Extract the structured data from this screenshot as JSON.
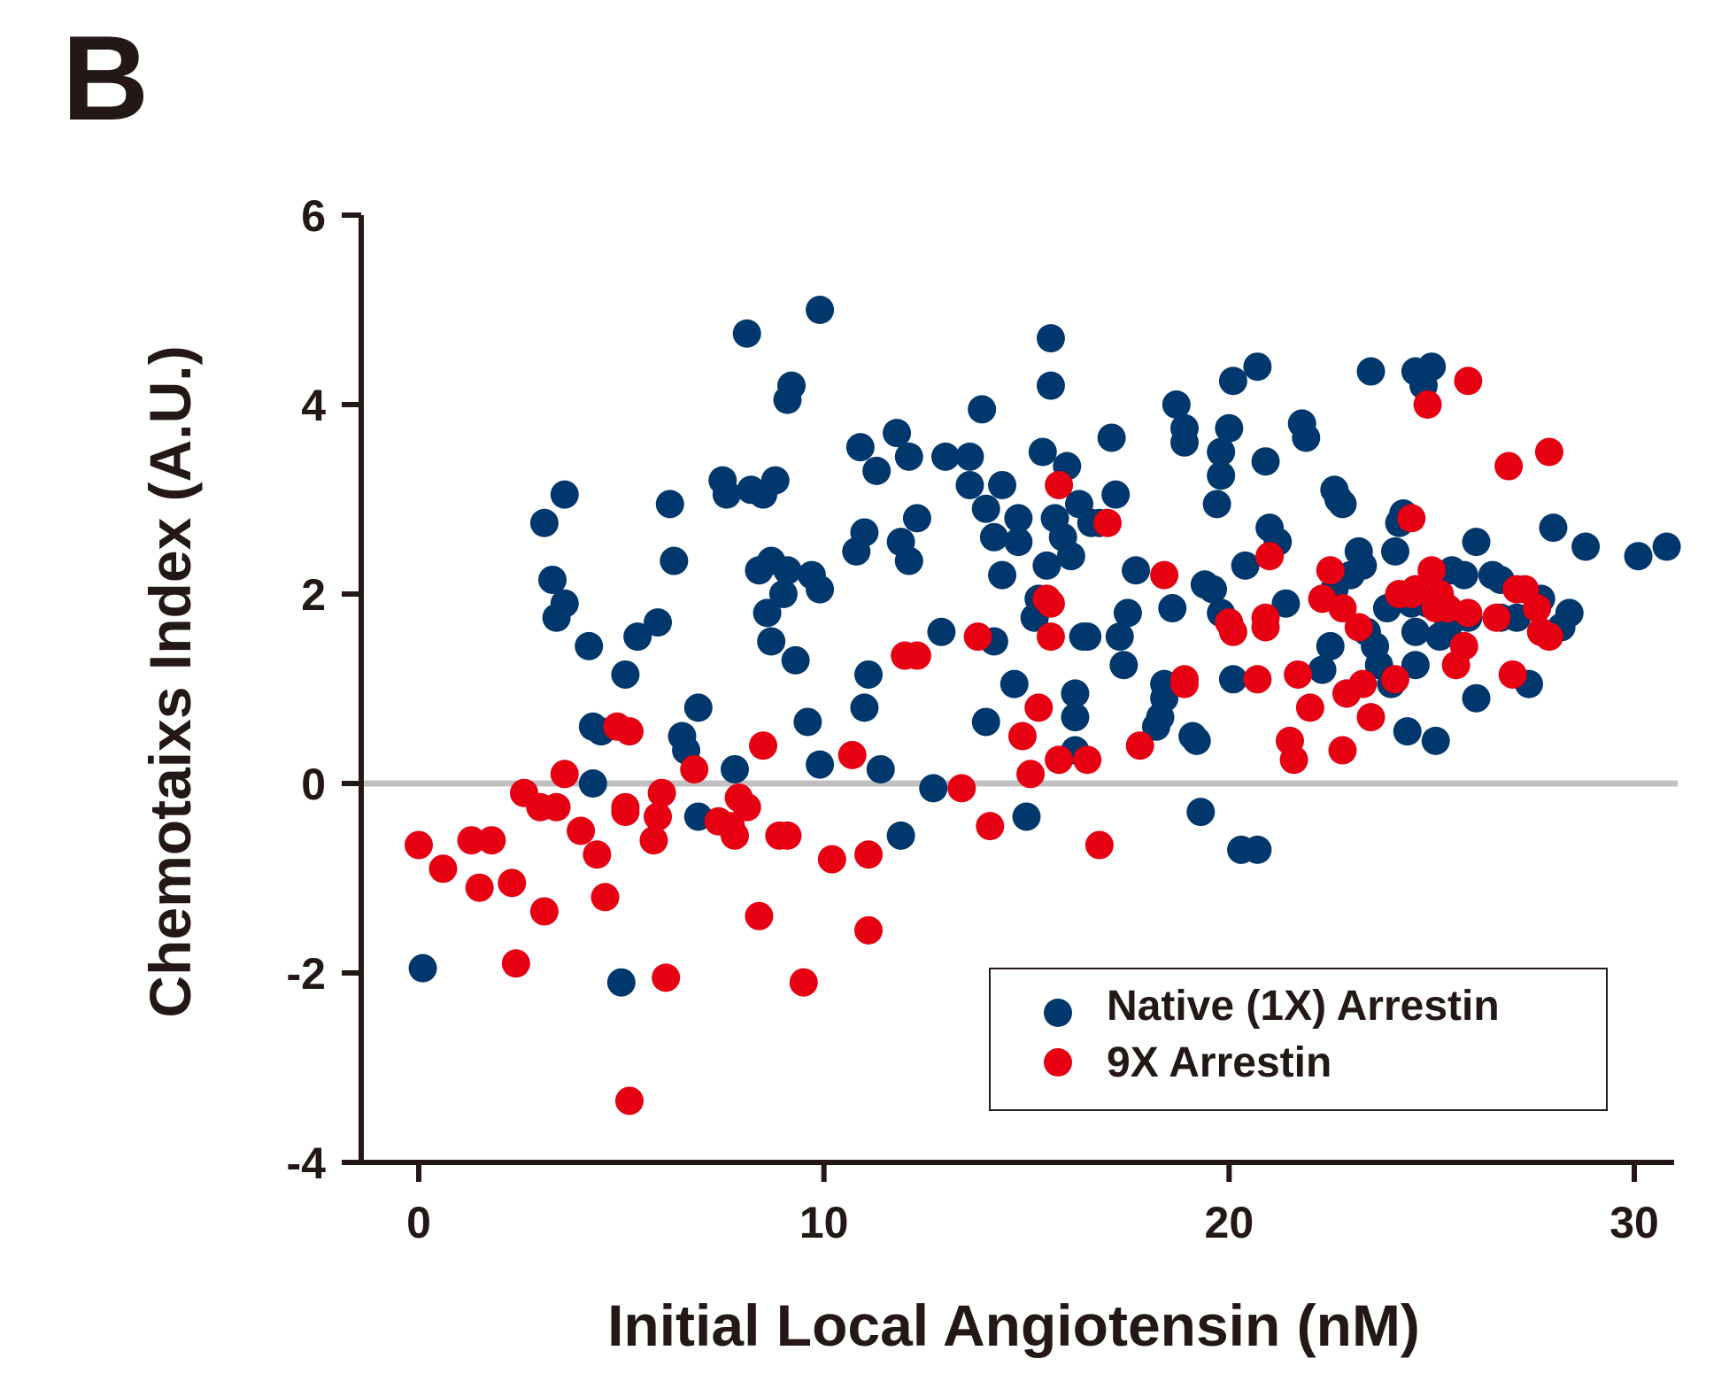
{
  "panel_label": "B",
  "colors": {
    "native": "#00376c",
    "nine_x": "#e60012",
    "axis": "#231815",
    "zero_line": "#c0c0c0"
  },
  "chart_data": {
    "type": "scatter",
    "title": "",
    "xlabel": "Initial Local Angiotensin (nM)",
    "ylabel": "Chemotaixs Index (A.U.)",
    "xlim": [
      -1.5,
      31
    ],
    "ylim": [
      -4,
      6
    ],
    "xticks": [
      0,
      10,
      20,
      30
    ],
    "xtick_labels": [
      "0",
      "10",
      "20",
      "30"
    ],
    "yticks": [
      -4,
      -2,
      0,
      2,
      4,
      6
    ],
    "ytick_labels": [
      "-4",
      "-2",
      "0",
      "2",
      "4",
      "6"
    ],
    "zero_line": true,
    "legend_position": "bottom-right",
    "series": [
      {
        "name": "Native (1X) Arrestin",
        "color": "#00376c",
        "points": [
          [
            0.1,
            -1.95
          ],
          [
            3.1,
            2.75
          ],
          [
            3.3,
            2.15
          ],
          [
            3.4,
            1.75
          ],
          [
            3.6,
            1.9
          ],
          [
            3.6,
            3.05
          ],
          [
            4.2,
            1.45
          ],
          [
            4.3,
            0.6
          ],
          [
            4.3,
            0.0
          ],
          [
            4.5,
            0.55
          ],
          [
            5.0,
            -2.1
          ],
          [
            5.1,
            1.15
          ],
          [
            5.4,
            1.55
          ],
          [
            5.9,
            1.7
          ],
          [
            6.2,
            2.95
          ],
          [
            6.3,
            2.35
          ],
          [
            6.5,
            0.5
          ],
          [
            6.6,
            0.35
          ],
          [
            6.9,
            -0.35
          ],
          [
            6.9,
            0.8
          ],
          [
            7.5,
            3.2
          ],
          [
            7.6,
            3.05
          ],
          [
            7.8,
            0.15
          ],
          [
            8.1,
            4.75
          ],
          [
            8.2,
            3.1
          ],
          [
            8.4,
            2.25
          ],
          [
            8.5,
            3.05
          ],
          [
            8.6,
            1.8
          ],
          [
            8.7,
            2.35
          ],
          [
            8.8,
            3.2
          ],
          [
            8.7,
            1.5
          ],
          [
            9.0,
            2.0
          ],
          [
            9.1,
            2.25
          ],
          [
            9.1,
            4.05
          ],
          [
            9.2,
            4.2
          ],
          [
            9.3,
            1.3
          ],
          [
            9.6,
            0.65
          ],
          [
            9.7,
            2.2
          ],
          [
            9.9,
            2.05
          ],
          [
            9.9,
            0.2
          ],
          [
            9.9,
            5.0
          ],
          [
            10.8,
            2.45
          ],
          [
            10.9,
            3.55
          ],
          [
            11.0,
            2.65
          ],
          [
            11.0,
            0.8
          ],
          [
            11.1,
            1.15
          ],
          [
            11.3,
            3.3
          ],
          [
            11.4,
            0.15
          ],
          [
            11.8,
            3.7
          ],
          [
            11.9,
            -0.55
          ],
          [
            11.9,
            2.55
          ],
          [
            12.1,
            2.35
          ],
          [
            12.1,
            3.45
          ],
          [
            12.3,
            2.8
          ],
          [
            12.7,
            -0.05
          ],
          [
            12.9,
            1.6
          ],
          [
            13.0,
            3.45
          ],
          [
            13.6,
            3.15
          ],
          [
            13.6,
            3.45
          ],
          [
            13.9,
            3.95
          ],
          [
            14.0,
            2.9
          ],
          [
            14.0,
            0.65
          ],
          [
            14.2,
            1.5
          ],
          [
            14.2,
            2.6
          ],
          [
            14.4,
            3.15
          ],
          [
            14.4,
            2.2
          ],
          [
            14.7,
            1.05
          ],
          [
            14.8,
            2.8
          ],
          [
            14.8,
            2.55
          ],
          [
            15.0,
            -0.35
          ],
          [
            15.2,
            1.75
          ],
          [
            15.3,
            1.95
          ],
          [
            15.4,
            3.5
          ],
          [
            15.5,
            2.3
          ],
          [
            15.6,
            4.7
          ],
          [
            15.6,
            4.2
          ],
          [
            15.7,
            2.8
          ],
          [
            15.9,
            2.6
          ],
          [
            16.0,
            3.35
          ],
          [
            16.1,
            2.4
          ],
          [
            16.2,
            0.95
          ],
          [
            16.2,
            0.7
          ],
          [
            16.2,
            0.35
          ],
          [
            16.3,
            2.95
          ],
          [
            16.4,
            1.55
          ],
          [
            16.5,
            1.55
          ],
          [
            16.6,
            2.75
          ],
          [
            16.8,
            2.75
          ],
          [
            17.1,
            3.65
          ],
          [
            17.2,
            3.05
          ],
          [
            17.3,
            1.55
          ],
          [
            17.4,
            1.25
          ],
          [
            17.5,
            1.8
          ],
          [
            17.7,
            2.25
          ],
          [
            18.2,
            0.6
          ],
          [
            18.3,
            0.7
          ],
          [
            18.4,
            1.05
          ],
          [
            18.4,
            0.9
          ],
          [
            18.6,
            1.85
          ],
          [
            18.7,
            4.0
          ],
          [
            18.9,
            3.75
          ],
          [
            18.9,
            3.6
          ],
          [
            19.1,
            0.5
          ],
          [
            19.2,
            0.45
          ],
          [
            19.3,
            -0.3
          ],
          [
            19.4,
            2.1
          ],
          [
            19.6,
            2.05
          ],
          [
            19.7,
            2.95
          ],
          [
            19.8,
            3.5
          ],
          [
            19.8,
            1.8
          ],
          [
            19.8,
            3.25
          ],
          [
            20.0,
            3.75
          ],
          [
            20.1,
            1.1
          ],
          [
            20.1,
            4.25
          ],
          [
            20.3,
            -0.7
          ],
          [
            20.4,
            2.3
          ],
          [
            20.7,
            -0.7
          ],
          [
            20.7,
            4.4
          ],
          [
            20.9,
            3.4
          ],
          [
            21.0,
            2.7
          ],
          [
            21.2,
            2.55
          ],
          [
            21.4,
            1.9
          ],
          [
            21.8,
            3.8
          ],
          [
            21.9,
            3.65
          ],
          [
            22.3,
            1.2
          ],
          [
            22.5,
            1.45
          ],
          [
            22.6,
            2.05
          ],
          [
            22.6,
            3.1
          ],
          [
            22.7,
            3.0
          ],
          [
            22.8,
            2.95
          ],
          [
            22.9,
            0.95
          ],
          [
            23.0,
            2.2
          ],
          [
            23.2,
            2.45
          ],
          [
            23.3,
            2.3
          ],
          [
            23.4,
            1.6
          ],
          [
            23.5,
            4.35
          ],
          [
            23.6,
            1.45
          ],
          [
            23.7,
            1.25
          ],
          [
            23.9,
            1.85
          ],
          [
            24.0,
            1.05
          ],
          [
            24.1,
            2.45
          ],
          [
            24.2,
            2.75
          ],
          [
            24.3,
            2.85
          ],
          [
            24.4,
            0.55
          ],
          [
            24.5,
            1.9
          ],
          [
            24.6,
            1.6
          ],
          [
            24.6,
            1.25
          ],
          [
            24.6,
            4.35
          ],
          [
            24.8,
            4.2
          ],
          [
            24.9,
            1.9
          ],
          [
            25.0,
            4.4
          ],
          [
            25.1,
            0.45
          ],
          [
            25.2,
            1.55
          ],
          [
            25.4,
            1.65
          ],
          [
            25.5,
            1.75
          ],
          [
            25.5,
            2.25
          ],
          [
            25.8,
            2.2
          ],
          [
            25.9,
            1.75
          ],
          [
            26.1,
            0.9
          ],
          [
            26.1,
            2.55
          ],
          [
            26.5,
            2.2
          ],
          [
            26.7,
            1.75
          ],
          [
            26.7,
            2.15
          ],
          [
            27.1,
            1.75
          ],
          [
            27.4,
            1.05
          ],
          [
            27.7,
            1.95
          ],
          [
            28.0,
            2.7
          ],
          [
            28.2,
            1.65
          ],
          [
            28.4,
            1.8
          ],
          [
            28.8,
            2.5
          ],
          [
            30.1,
            2.4
          ],
          [
            30.8,
            2.5
          ]
        ]
      },
      {
        "name": "9X Arrestin",
        "color": "#e60012",
        "points": [
          [
            0.0,
            -0.65
          ],
          [
            0.6,
            -0.9
          ],
          [
            1.3,
            -0.6
          ],
          [
            1.5,
            -1.1
          ],
          [
            1.8,
            -0.6
          ],
          [
            2.3,
            -1.05
          ],
          [
            2.4,
            -1.9
          ],
          [
            2.6,
            -0.1
          ],
          [
            3.0,
            -0.25
          ],
          [
            3.1,
            -1.35
          ],
          [
            3.4,
            -0.25
          ],
          [
            3.6,
            0.1
          ],
          [
            4.0,
            -0.5
          ],
          [
            4.4,
            -0.75
          ],
          [
            4.6,
            -1.2
          ],
          [
            4.9,
            0.6
          ],
          [
            5.1,
            -0.25
          ],
          [
            5.1,
            -0.3
          ],
          [
            5.2,
            0.55
          ],
          [
            5.2,
            -3.35
          ],
          [
            5.8,
            -0.6
          ],
          [
            5.9,
            -0.35
          ],
          [
            6.0,
            -0.1
          ],
          [
            6.1,
            -2.05
          ],
          [
            6.8,
            0.15
          ],
          [
            7.4,
            -0.4
          ],
          [
            7.7,
            -0.45
          ],
          [
            7.8,
            -0.55
          ],
          [
            7.9,
            -0.15
          ],
          [
            8.1,
            -0.25
          ],
          [
            8.4,
            -1.4
          ],
          [
            8.5,
            0.4
          ],
          [
            8.9,
            -0.55
          ],
          [
            9.1,
            -0.55
          ],
          [
            9.5,
            -2.1
          ],
          [
            10.2,
            -0.8
          ],
          [
            10.7,
            0.3
          ],
          [
            11.1,
            -0.75
          ],
          [
            11.1,
            -1.55
          ],
          [
            12.0,
            1.35
          ],
          [
            12.3,
            1.35
          ],
          [
            13.4,
            -0.05
          ],
          [
            13.8,
            1.55
          ],
          [
            14.1,
            -0.45
          ],
          [
            14.9,
            0.5
          ],
          [
            15.1,
            0.1
          ],
          [
            15.3,
            0.8
          ],
          [
            15.5,
            1.95
          ],
          [
            15.6,
            1.9
          ],
          [
            15.6,
            1.55
          ],
          [
            15.8,
            0.25
          ],
          [
            15.8,
            3.15
          ],
          [
            16.5,
            0.25
          ],
          [
            16.8,
            -0.65
          ],
          [
            17.0,
            2.75
          ],
          [
            17.8,
            0.4
          ],
          [
            18.4,
            2.2
          ],
          [
            18.9,
            1.1
          ],
          [
            18.9,
            1.05
          ],
          [
            20.0,
            1.7
          ],
          [
            20.1,
            1.6
          ],
          [
            20.7,
            1.1
          ],
          [
            20.9,
            1.65
          ],
          [
            20.9,
            1.75
          ],
          [
            21.0,
            2.4
          ],
          [
            21.5,
            0.45
          ],
          [
            21.6,
            0.25
          ],
          [
            21.7,
            1.15
          ],
          [
            22.0,
            0.8
          ],
          [
            22.3,
            1.95
          ],
          [
            22.5,
            2.25
          ],
          [
            22.8,
            0.35
          ],
          [
            22.8,
            1.85
          ],
          [
            22.9,
            0.95
          ],
          [
            23.2,
            1.65
          ],
          [
            23.3,
            1.05
          ],
          [
            23.5,
            0.7
          ],
          [
            24.1,
            1.1
          ],
          [
            24.2,
            2.0
          ],
          [
            24.5,
            2.8
          ],
          [
            24.5,
            2.0
          ],
          [
            24.6,
            2.05
          ],
          [
            24.9,
            4.0
          ],
          [
            25.0,
            2.25
          ],
          [
            25.1,
            1.85
          ],
          [
            25.2,
            2.0
          ],
          [
            25.4,
            1.85
          ],
          [
            25.6,
            1.25
          ],
          [
            25.8,
            1.45
          ],
          [
            25.9,
            4.25
          ],
          [
            25.9,
            1.8
          ],
          [
            26.6,
            1.75
          ],
          [
            26.9,
            3.35
          ],
          [
            27.0,
            1.15
          ],
          [
            27.1,
            2.05
          ],
          [
            27.3,
            2.05
          ],
          [
            27.6,
            1.85
          ],
          [
            27.7,
            1.6
          ],
          [
            27.9,
            1.55
          ],
          [
            27.9,
            3.5
          ]
        ]
      }
    ]
  }
}
